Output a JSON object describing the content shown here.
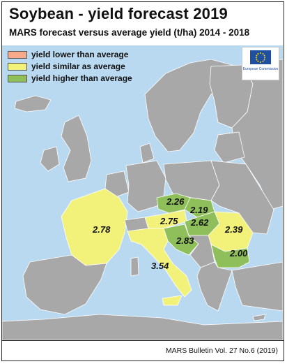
{
  "header": {
    "title": "Soybean - yield forecast 2019",
    "subtitle": "MARS forecast versus average yield (t/ha) 2014 - 2018"
  },
  "legend": [
    {
      "label": "yield lower than average",
      "color": "#f7a98b"
    },
    {
      "label": "yield similar as average",
      "color": "#f2f27a"
    },
    {
      "label": "yield higher than average",
      "color": "#8fbf5a"
    }
  ],
  "logo": {
    "icon": "eu-flag-icon",
    "text": "European Commission"
  },
  "regions": [
    {
      "id": "france",
      "value": "2.78",
      "category": "similar"
    },
    {
      "id": "italy",
      "value": "3.54",
      "category": "similar"
    },
    {
      "id": "austria",
      "value": "2.75",
      "category": "similar"
    },
    {
      "id": "czechia",
      "value": "2.26",
      "category": "higher"
    },
    {
      "id": "slovakia",
      "value": "2.19",
      "category": "higher"
    },
    {
      "id": "hungary",
      "value": "2.62",
      "category": "higher"
    },
    {
      "id": "croatia",
      "value": "2.83",
      "category": "higher"
    },
    {
      "id": "romania",
      "value": "2.39",
      "category": "similar"
    },
    {
      "id": "bulgaria",
      "value": "2.00",
      "category": "higher"
    }
  ],
  "colors": {
    "sea": "#b9d9f0",
    "land": "#a8a8a8",
    "similar": "#f2f27a",
    "higher": "#8fbf5a",
    "lower": "#f7a98b"
  },
  "footer": {
    "source": "MARS Bulletin Vol. 27 No.6 (2019)"
  }
}
